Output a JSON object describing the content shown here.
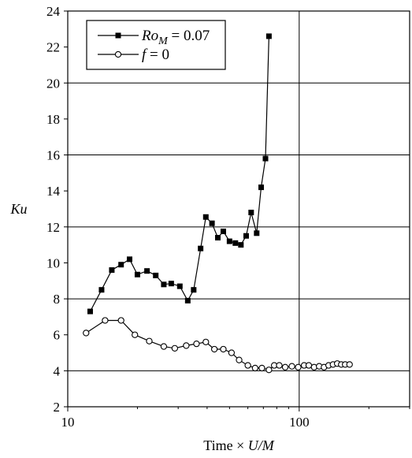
{
  "chart_data": {
    "type": "line",
    "title": "",
    "xlabel_parts": [
      "Time × ",
      "U/M"
    ],
    "ylabel": "Ku",
    "x_scale": "log",
    "xlim": [
      10,
      300
    ],
    "ylim": [
      2,
      24
    ],
    "x_ticks": [
      10,
      100
    ],
    "x_tick_labels": [
      "10",
      "100"
    ],
    "y_ticks": [
      2,
      4,
      6,
      8,
      10,
      12,
      14,
      16,
      18,
      20,
      22,
      24
    ],
    "y_tick_labels": [
      "2",
      "4",
      "6",
      "8",
      "10",
      "12",
      "14",
      "16",
      "18",
      "20",
      "22",
      "24"
    ],
    "grid": {
      "horizontal": true,
      "vertical_at_major_x": true
    },
    "legend_position": "top-left",
    "series": [
      {
        "legend_parts": [
          "Ro",
          "M",
          " = 0.07"
        ],
        "marker": "filled-square",
        "color": "#000000",
        "x": [
          12.5,
          14,
          15.5,
          17,
          18.5,
          20,
          22,
          24,
          26,
          28,
          30.5,
          33,
          35,
          37.5,
          39.5,
          42,
          44.5,
          47,
          50,
          53,
          56,
          59,
          62,
          65.5,
          68.5,
          71.5,
          74
        ],
        "y": [
          7.3,
          8.5,
          9.6,
          9.9,
          10.2,
          9.35,
          9.55,
          9.3,
          8.8,
          8.85,
          8.7,
          7.9,
          8.5,
          10.8,
          12.55,
          12.2,
          11.4,
          11.75,
          11.2,
          11.1,
          11.0,
          11.5,
          12.8,
          11.65,
          14.2,
          15.8,
          22.6
        ]
      },
      {
        "legend_parts": [
          "f",
          " = 0"
        ],
        "marker": "open-circle",
        "color": "#000000",
        "x": [
          12,
          14.5,
          17,
          19.5,
          22.5,
          26,
          29,
          32.5,
          36,
          39.5,
          43,
          47,
          51,
          55,
          60,
          64.5,
          69,
          74,
          78,
          82,
          87,
          93,
          99,
          105,
          110,
          116,
          122,
          128,
          134,
          140,
          146,
          152,
          158,
          165
        ],
        "y": [
          6.1,
          6.8,
          6.8,
          6.0,
          5.65,
          5.35,
          5.25,
          5.4,
          5.5,
          5.6,
          5.2,
          5.2,
          5.0,
          4.6,
          4.3,
          4.15,
          4.15,
          4.05,
          4.3,
          4.3,
          4.2,
          4.25,
          4.2,
          4.3,
          4.3,
          4.2,
          4.25,
          4.2,
          4.3,
          4.35,
          4.4,
          4.35,
          4.35,
          4.35
        ]
      }
    ]
  }
}
